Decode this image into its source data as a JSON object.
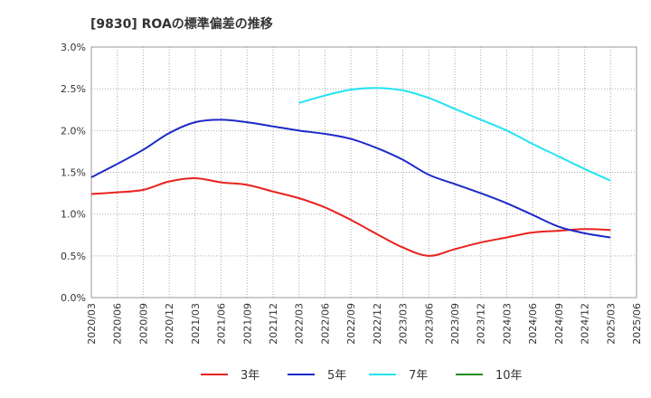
{
  "chart_data": {
    "type": "line",
    "title": "[9830]  ROAの標準偏差の推移",
    "categories": [
      "2020/03",
      "2020/06",
      "2020/09",
      "2020/12",
      "2021/03",
      "2021/06",
      "2021/09",
      "2021/12",
      "2022/03",
      "2022/06",
      "2022/09",
      "2022/12",
      "2023/03",
      "2023/06",
      "2023/09",
      "2023/12",
      "2024/03",
      "2024/06",
      "2024/09",
      "2024/12",
      "2025/03",
      "2025/06"
    ],
    "y_ticks": [
      "0.0%",
      "0.5%",
      "1.0%",
      "1.5%",
      "2.0%",
      "2.5%",
      "3.0%"
    ],
    "ylim": [
      0,
      3.0
    ],
    "grid": true,
    "legend_position": "bottom",
    "series": [
      {
        "name": "3年",
        "color": "#e8221e",
        "values": [
          1.24,
          1.26,
          1.29,
          1.39,
          1.43,
          1.38,
          1.35,
          1.27,
          1.19,
          1.08,
          0.93,
          0.76,
          0.6,
          0.5,
          0.58,
          0.66,
          0.72,
          0.78,
          0.8,
          0.82,
          0.81,
          null
        ]
      },
      {
        "name": "5年",
        "color": "#1c2ac8",
        "values": [
          1.44,
          1.6,
          1.77,
          1.97,
          2.1,
          2.13,
          2.1,
          2.05,
          2.0,
          1.96,
          1.9,
          1.79,
          1.65,
          1.47,
          1.36,
          1.25,
          1.13,
          0.99,
          0.85,
          0.77,
          0.72,
          null
        ]
      },
      {
        "name": "7年",
        "color": "#22e4f2",
        "values": [
          null,
          null,
          null,
          null,
          null,
          null,
          null,
          null,
          2.33,
          2.42,
          2.49,
          2.51,
          2.48,
          2.39,
          2.26,
          2.13,
          2.0,
          1.84,
          1.69,
          1.54,
          1.4,
          null
        ]
      },
      {
        "name": "10年",
        "color": "#228b22",
        "values": [
          null,
          null,
          null,
          null,
          null,
          null,
          null,
          null,
          null,
          null,
          null,
          null,
          null,
          null,
          null,
          null,
          null,
          null,
          null,
          null,
          null,
          null
        ]
      }
    ]
  }
}
